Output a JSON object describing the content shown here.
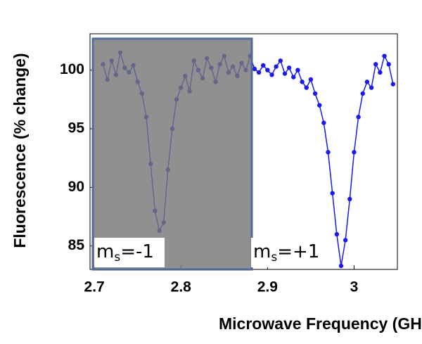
{
  "chart_data": {
    "type": "line",
    "x_label": "Microwave Frequency (GHz)",
    "y_label": "Fluorescence (% change)",
    "x": [
      2.71,
      2.715,
      2.72,
      2.725,
      2.73,
      2.735,
      2.74,
      2.745,
      2.75,
      2.755,
      2.76,
      2.765,
      2.77,
      2.775,
      2.78,
      2.785,
      2.79,
      2.795,
      2.8,
      2.805,
      2.81,
      2.815,
      2.82,
      2.825,
      2.83,
      2.835,
      2.84,
      2.845,
      2.85,
      2.855,
      2.86,
      2.865,
      2.87,
      2.875,
      2.88,
      2.885,
      2.89,
      2.895,
      2.9,
      2.905,
      2.91,
      2.915,
      2.92,
      2.925,
      2.93,
      2.935,
      2.94,
      2.945,
      2.95,
      2.955,
      2.96,
      2.965,
      2.97,
      2.975,
      2.98,
      2.985,
      2.99,
      2.995,
      3.0,
      3.005,
      3.01,
      3.015,
      3.02,
      3.025,
      3.03,
      3.035,
      3.04,
      3.045
    ],
    "series": [
      {
        "color": "#1a1aee",
        "values": [
          100.5,
          99.2,
          100.8,
          99.6,
          101.5,
          100.2,
          99.8,
          100.4,
          99.0,
          98.0,
          96.0,
          92.0,
          88.0,
          86.3,
          87.0,
          91.5,
          95.0,
          97.5,
          98.5,
          99.5,
          98.2,
          100.8,
          100.0,
          99.3,
          101.0,
          100.2,
          99.0,
          100.5,
          101.2,
          99.8,
          100.3,
          99.5,
          100.6,
          100.0,
          101.2,
          100.1,
          99.8,
          100.4,
          100.0,
          99.6,
          100.3,
          100.8,
          99.7,
          100.2,
          99.4,
          100.0,
          99.0,
          98.5,
          99.2,
          98.0,
          97.0,
          95.5,
          93.0,
          89.5,
          86.0,
          83.3,
          85.5,
          89.0,
          93.0,
          96.0,
          98.0,
          99.0,
          98.5,
          100.5,
          99.8,
          101.2,
          100.5,
          98.8
        ]
      }
    ],
    "xlim": [
      2.695,
      3.05
    ],
    "ylim": [
      83.0,
      103.1
    ],
    "xticks": [
      {
        "value": 2.7,
        "label": "2.7"
      },
      {
        "value": 2.8,
        "label": "2.8"
      },
      {
        "value": 2.9,
        "label": "2.9"
      },
      3
    ],
    "yticks": [
      85,
      90,
      95,
      100
    ],
    "annotations": [
      {
        "text": "m",
        "sub": "s",
        "rest": "=-1"
      },
      {
        "text": "m",
        "sub": "s",
        "rest": "=+1"
      }
    ]
  }
}
